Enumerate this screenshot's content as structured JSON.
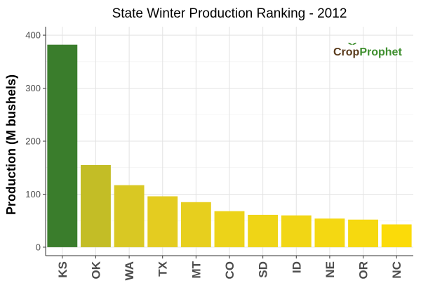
{
  "chart_data": {
    "type": "bar",
    "title": "State Winter  Production Ranking - 2012",
    "xlabel": "",
    "ylabel": "Production (M bushels)",
    "categories": [
      "KS",
      "OK",
      "WA",
      "TX",
      "MT",
      "CO",
      "SD",
      "ID",
      "NE",
      "OR",
      "NC"
    ],
    "values": [
      382,
      155,
      117,
      96,
      85,
      68,
      61,
      60,
      54,
      52,
      43
    ],
    "bar_colors": [
      "#3a7d2c",
      "#c3bd26",
      "#d9c823",
      "#e4cc20",
      "#e7cf1e",
      "#ecd319",
      "#efd516",
      "#f1d615",
      "#f4d812",
      "#f6d90f",
      "#fbdb09"
    ],
    "ylim": [
      0,
      400
    ],
    "yticks": [
      0,
      100,
      200,
      300,
      400
    ],
    "grid": true,
    "watermark": {
      "part1": "Crop",
      "part2": "Prophet",
      "color1": "#5a3b1c",
      "color2": "#3f8f2f"
    }
  }
}
